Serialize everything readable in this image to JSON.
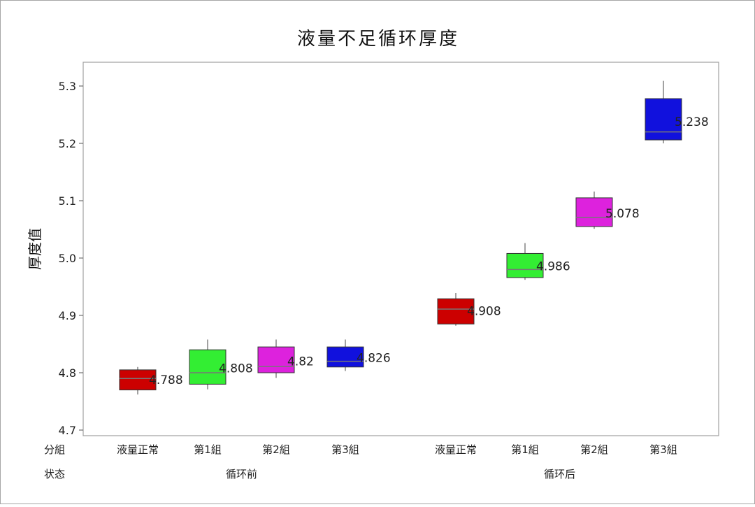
{
  "chart_data": {
    "type": "boxplot",
    "title": "液量不足循环厚度",
    "ylabel": "厚度值",
    "xlabel": "",
    "ylim": [
      4.7,
      5.3
    ],
    "yticks": [
      "4.7",
      "4.8",
      "4.9",
      "5.0",
      "5.1",
      "5.2",
      "5.3"
    ],
    "row_labels": {
      "group": "分組",
      "state": "状态"
    },
    "states": [
      {
        "label": "循环前",
        "groups": [
          0,
          1,
          2,
          3
        ]
      },
      {
        "label": "循环后",
        "groups": [
          4,
          5,
          6,
          7
        ]
      }
    ],
    "groups": [
      {
        "label": "液量正常",
        "color": "#cc0000",
        "min": 4.762,
        "q1": 4.77,
        "median": 4.79,
        "q3": 4.805,
        "max": 4.81,
        "mean_label": "4.788"
      },
      {
        "label": "第1組",
        "color": "#33ee33",
        "min": 4.771,
        "q1": 4.78,
        "median": 4.8,
        "q3": 4.84,
        "max": 4.858,
        "mean_label": "4.808"
      },
      {
        "label": "第2組",
        "color": "#dd22dd",
        "min": 4.791,
        "q1": 4.8,
        "median": 4.811,
        "q3": 4.845,
        "max": 4.858,
        "mean_label": "4.82"
      },
      {
        "label": "第3組",
        "color": "#1111dd",
        "min": 4.803,
        "q1": 4.81,
        "median": 4.82,
        "q3": 4.845,
        "max": 4.858,
        "mean_label": "4.826"
      },
      {
        "label": "液量正常",
        "color": "#cc0000",
        "min": 4.882,
        "q1": 4.885,
        "median": 4.911,
        "q3": 4.929,
        "max": 4.939,
        "mean_label": "4.908"
      },
      {
        "label": "第1組",
        "color": "#33ee33",
        "min": 4.962,
        "q1": 4.966,
        "median": 4.98,
        "q3": 5.008,
        "max": 5.026,
        "mean_label": "4.986"
      },
      {
        "label": "第2組",
        "color": "#dd22dd",
        "min": 5.051,
        "q1": 5.055,
        "median": 5.071,
        "q3": 5.105,
        "max": 5.116,
        "mean_label": "5.078"
      },
      {
        "label": "第3組",
        "color": "#1111dd",
        "min": 5.2,
        "q1": 5.206,
        "median": 5.22,
        "q3": 5.278,
        "max": 5.309,
        "mean_label": "5.238"
      }
    ],
    "grid": false,
    "legend": "none"
  }
}
